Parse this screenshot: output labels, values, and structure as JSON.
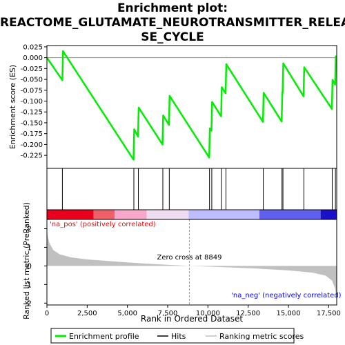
{
  "title_line1": "Enrichment plot:",
  "title_line2": "REACTOME_GLUTAMATE_NEUROTRANSMITTER_RELEA",
  "title_line3": "SE_CYCLE",
  "chart_data": [
    {
      "type": "line",
      "ylabel": "Enrichment score (ES)",
      "xlim": [
        0,
        18000
      ],
      "ylim": [
        -0.255,
        0.028
      ],
      "yticks": [
        0.025,
        0.0,
        -0.025,
        -0.05,
        -0.075,
        -0.1,
        -0.125,
        -0.15,
        -0.175,
        -0.2,
        -0.225
      ],
      "ytick_labels": [
        "0.025",
        "0.000",
        "-0.025",
        "-0.050",
        "-0.075",
        "-0.100",
        "-0.125",
        "-0.150",
        "-0.175",
        "-0.200",
        "-0.225"
      ],
      "series": [
        {
          "name": "Enrichment profile",
          "color": "#00ee00",
          "x": [
            0,
            960,
            1000,
            5380,
            5420,
            5660,
            5700,
            7180,
            7220,
            7580,
            7620,
            10080,
            10120,
            10220,
            10260,
            10820,
            10860,
            11100,
            11140,
            13420,
            13460,
            14580,
            14620,
            14640,
            14680,
            15940,
            15980,
            17700,
            17740,
            17900,
            17940,
            18000
          ],
          "y": [
            0.0,
            -0.052,
            0.015,
            -0.235,
            -0.165,
            -0.182,
            -0.115,
            -0.2,
            -0.133,
            -0.155,
            -0.088,
            -0.23,
            -0.163,
            -0.168,
            -0.102,
            -0.135,
            -0.068,
            -0.082,
            -0.015,
            -0.148,
            -0.081,
            -0.147,
            -0.08,
            -0.081,
            -0.013,
            -0.089,
            -0.022,
            -0.118,
            -0.051,
            -0.062,
            0.003,
            0.003
          ]
        }
      ]
    },
    {
      "type": "hits",
      "hits_x": [
        960,
        5400,
        5680,
        7200,
        7600,
        10100,
        10240,
        10840,
        11120,
        13440,
        14600,
        14660,
        15960,
        17720,
        17920
      ]
    },
    {
      "type": "heatmap",
      "colors": [
        "#e8001e",
        "#f0606a",
        "#f7a8c8",
        "#eedcf0",
        "#bcbcff",
        "#6060ee",
        "#1a10c8"
      ],
      "stops": [
        0,
        2900,
        4200,
        6200,
        8800,
        13200,
        17000,
        18000
      ],
      "label_pos": "'na_pos' (positively correlated)",
      "label_neg": "'na_neg' (negatively correlated)",
      "label_pos_color": "#ff0000",
      "label_neg_color": "#0000ff"
    },
    {
      "type": "area",
      "xlabel": "Rank in Ordered Dataset",
      "ylabel": "Ranked list metric (PreRanked)",
      "xlim": [
        0,
        18000
      ],
      "ylim": [
        -2.1,
        2.5
      ],
      "xticks": [
        0,
        2500,
        5000,
        7500,
        10000,
        12500,
        15000,
        17500
      ],
      "xtick_labels": [
        "0",
        "2,500",
        "5,000",
        "7,500",
        "10,000",
        "12,500",
        "15,000",
        "17,500"
      ],
      "yticks": [
        2,
        1,
        0,
        -1,
        -2
      ],
      "ytick_labels": [
        "2",
        "1",
        "0",
        "-1",
        "-2"
      ],
      "zero_cross_x": 8849,
      "zero_cross_label": "Zero cross at 8849",
      "metric_x": [
        0,
        50,
        150,
        400,
        800,
        1500,
        2500,
        4000,
        6000,
        8849,
        11000,
        13000,
        15000,
        16500,
        17300,
        17700,
        17900,
        18000
      ],
      "metric_y": [
        1.95,
        1.6,
        1.25,
        0.85,
        0.62,
        0.46,
        0.35,
        0.25,
        0.13,
        0.0,
        -0.07,
        -0.14,
        -0.24,
        -0.36,
        -0.52,
        -0.78,
        -1.2,
        -1.9
      ],
      "fill_color": "#c0c0c0"
    }
  ],
  "legend": {
    "items": [
      {
        "label": "Enrichment profile",
        "color": "#00ee00"
      },
      {
        "label": "Hits",
        "color": "#000000"
      },
      {
        "label": "Ranking metric scores",
        "color": "#c0c0c0"
      }
    ]
  }
}
